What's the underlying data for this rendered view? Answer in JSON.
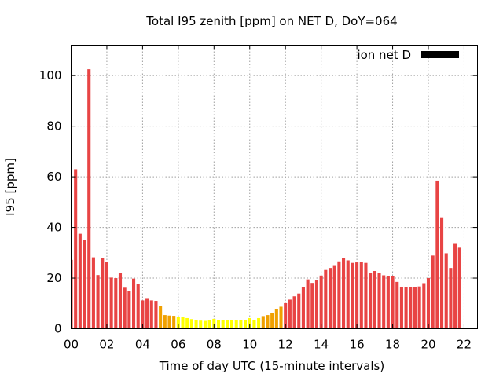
{
  "chart_data": {
    "type": "bar",
    "title": "Total I95 zenith [ppm] on NET D, DoY=064",
    "xlabel": "Time of day UTC (15-minute intervals)",
    "ylabel": "I95 [ppm]",
    "ylim": [
      0,
      112
    ],
    "xlim": [
      0,
      22.75
    ],
    "interval_hours": 0.25,
    "yticks": [
      0,
      20,
      40,
      60,
      80,
      100
    ],
    "xticks": [
      0,
      2,
      4,
      6,
      8,
      10,
      12,
      14,
      16,
      18,
      20,
      22
    ],
    "xtick_labels": [
      "00",
      "02",
      "04",
      "06",
      "08",
      "10",
      "12",
      "14",
      "16",
      "18",
      "20",
      "22"
    ],
    "legend": {
      "label": "ion net D",
      "color": "#000000",
      "placement": "top-right"
    },
    "grid": true,
    "color_scale": [
      {
        "max": 5,
        "color": "#ffff00"
      },
      {
        "max": 10,
        "color": "#f0a000"
      },
      {
        "max": 1000,
        "color": "#e84444"
      }
    ],
    "values": [
      27.2,
      63.0,
      37.5,
      35.0,
      102.5,
      28.2,
      21.2,
      27.8,
      26.5,
      20.2,
      20.0,
      22.0,
      16.2,
      15.0,
      19.8,
      17.8,
      11.2,
      11.8,
      11.2,
      11.0,
      9.0,
      5.4,
      5.2,
      5.1,
      4.7,
      4.5,
      4.2,
      3.8,
      3.4,
      3.2,
      3.1,
      3.3,
      3.9,
      3.3,
      3.4,
      3.5,
      3.3,
      3.3,
      3.4,
      3.5,
      4.2,
      3.5,
      4.2,
      5.0,
      5.4,
      6.2,
      7.7,
      8.7,
      10.1,
      11.5,
      12.8,
      13.9,
      16.3,
      19.5,
      18.1,
      19.1,
      21.0,
      23.2,
      24.0,
      24.8,
      26.6,
      27.8,
      27.0,
      26.0,
      26.2,
      26.5,
      26.0,
      21.9,
      22.8,
      22.1,
      21.1,
      20.9,
      20.8,
      18.5,
      16.6,
      16.4,
      16.6,
      16.6,
      16.7,
      18.0,
      20.0,
      28.9,
      58.5,
      44.0,
      29.8,
      24.0,
      33.5,
      32.0
    ]
  }
}
